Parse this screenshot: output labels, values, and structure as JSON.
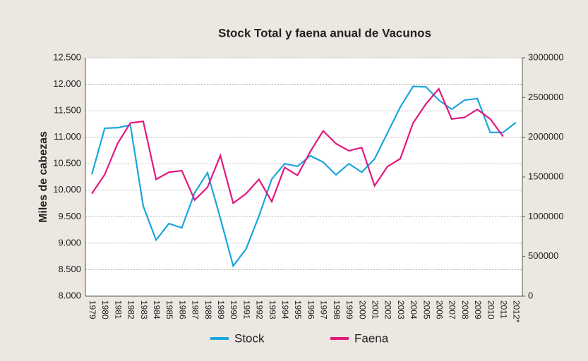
{
  "chart_data": {
    "type": "line",
    "title": "Stock Total y faena anual de Vacunos",
    "y_label": "Miles de cabezas",
    "categories": [
      "1979",
      "1980",
      "1981",
      "1982",
      "1983",
      "1984",
      "1985",
      "1986",
      "1987",
      "1988",
      "1989",
      "1990",
      "1991",
      "1992",
      "1993",
      "1994",
      "1995",
      "1996",
      "1997",
      "1998",
      "1999",
      "2000",
      "2001",
      "2002",
      "2003",
      "2004",
      "2005",
      "2006",
      "2007",
      "2008",
      "2009",
      "2010",
      "2011",
      "2012*"
    ],
    "series": [
      {
        "name": "Stock",
        "color": "#1ba6dd",
        "axis": "y",
        "values": [
          10300,
          11170,
          11180,
          11230,
          9700,
          9060,
          9370,
          9290,
          9950,
          10330,
          9470,
          8570,
          8890,
          9510,
          10210,
          10500,
          10450,
          10650,
          10530,
          10290,
          10500,
          10340,
          10590,
          11080,
          11570,
          11960,
          11950,
          11700,
          11530,
          11700,
          11730,
          11090,
          11090,
          11280
        ]
      },
      {
        "name": "Faena",
        "color": "#e2197e",
        "axis": "y2",
        "values": [
          1290000,
          1530000,
          1920000,
          2180000,
          2200000,
          1470000,
          1560000,
          1580000,
          1210000,
          1370000,
          1770000,
          1170000,
          1290000,
          1470000,
          1190000,
          1620000,
          1520000,
          1820000,
          2080000,
          1920000,
          1830000,
          1870000,
          1390000,
          1630000,
          1730000,
          2180000,
          2420000,
          2610000,
          2230000,
          2250000,
          2350000,
          2230000,
          2010000,
          null
        ]
      }
    ],
    "ylim": [
      8000,
      12500
    ],
    "yticks": [
      {
        "value": 8000,
        "label": "8.000"
      },
      {
        "value": 8500,
        "label": "8.500"
      },
      {
        "value": 9000,
        "label": "9.000"
      },
      {
        "value": 9500,
        "label": "9.500"
      },
      {
        "value": 10000,
        "label": "10.000"
      },
      {
        "value": 10500,
        "label": "10.500"
      },
      {
        "value": 11000,
        "label": "11.000"
      },
      {
        "value": 11500,
        "label": "11.500"
      },
      {
        "value": 12000,
        "label": "12.000"
      },
      {
        "value": 12500,
        "label": "12.500"
      }
    ],
    "y2lim": [
      0,
      3000000
    ],
    "y2ticks": [
      0,
      500000,
      1000000,
      1500000,
      2000000,
      2500000,
      3000000
    ],
    "grid": true,
    "legend": "bottom"
  }
}
